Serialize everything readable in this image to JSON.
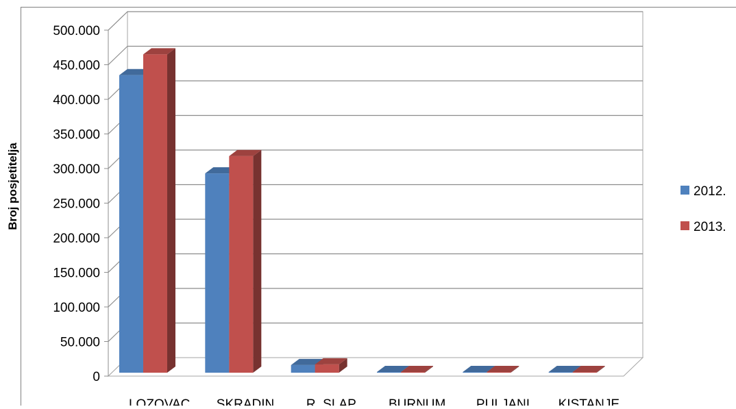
{
  "chart_data": {
    "type": "bar",
    "ylabel": "Broj posjetitelja",
    "xlabel": "",
    "categories": [
      "LOZOVAC",
      "SKRADIN",
      "R. SLAP",
      "BURNUM",
      "PULJANI",
      "KISTANJE"
    ],
    "series": [
      {
        "name": "2012.",
        "color": "#4F81BD",
        "values": [
          430000,
          288000,
          11000,
          500,
          500,
          500
        ]
      },
      {
        "name": "2013.",
        "color": "#C0504D",
        "values": [
          460000,
          313000,
          12000,
          500,
          500,
          500
        ]
      }
    ],
    "ylim": [
      0,
      500000
    ],
    "yticks": [
      "0",
      "50.000",
      "100.000",
      "150.000",
      "200.000",
      "250.000",
      "300.000",
      "350.000",
      "400.000",
      "450.000",
      "500.000"
    ],
    "grid": true,
    "legend": "right",
    "style": "3d-clustered-column"
  }
}
